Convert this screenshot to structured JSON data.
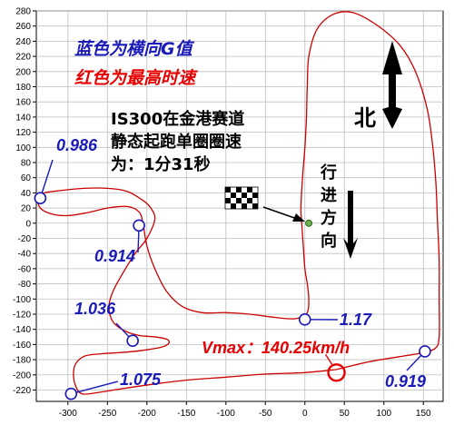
{
  "chart_data": {
    "type": "scatter",
    "xlim": [
      -340,
      175
    ],
    "ylim": [
      -235,
      280
    ],
    "x_ticks": [
      "-300",
      "-250",
      "-200",
      "-150",
      "-100",
      "-50",
      "0",
      "50",
      "100",
      "150"
    ],
    "y_ticks": [
      "280",
      "260",
      "240",
      "220",
      "200",
      "180",
      "160",
      "140",
      "120",
      "100",
      "80",
      "60",
      "40",
      "20",
      "0",
      "-20",
      "-40",
      "-60",
      "-80",
      "-100",
      "-120",
      "-140",
      "-160",
      "-180",
      "-200",
      "-220"
    ],
    "grid": true,
    "track_color": "#cc0000",
    "g_color": "#1a1ab8",
    "vmax_color": "#e60000",
    "track": [
      [
        40,
        -193
      ],
      [
        80,
        -183
      ],
      [
        120,
        -176
      ],
      [
        148,
        -171
      ],
      [
        165,
        -165
      ],
      [
        170,
        -150
      ],
      [
        170,
        -100
      ],
      [
        170,
        -50
      ],
      [
        168,
        0
      ],
      [
        166,
        50
      ],
      [
        162,
        100
      ],
      [
        155,
        150
      ],
      [
        140,
        200
      ],
      [
        120,
        235
      ],
      [
        90,
        262
      ],
      [
        60,
        278
      ],
      [
        35,
        275
      ],
      [
        15,
        255
      ],
      [
        5,
        220
      ],
      [
        3,
        180
      ],
      [
        2,
        140
      ],
      [
        0,
        100
      ],
      [
        -3,
        60
      ],
      [
        -5,
        20
      ],
      [
        -4,
        0
      ],
      [
        -2,
        -30
      ],
      [
        0,
        -60
      ],
      [
        3,
        -80
      ],
      [
        5,
        -100
      ],
      [
        3,
        -118
      ],
      [
        -8,
        -125
      ],
      [
        -20,
        -126
      ],
      [
        -40,
        -124
      ],
      [
        -70,
        -120
      ],
      [
        -100,
        -118
      ],
      [
        -130,
        -118
      ],
      [
        -155,
        -110
      ],
      [
        -175,
        -90
      ],
      [
        -190,
        -60
      ],
      [
        -200,
        -30
      ],
      [
        -205,
        0
      ],
      [
        -210,
        15
      ],
      [
        -225,
        22
      ],
      [
        -250,
        20
      ],
      [
        -275,
        14
      ],
      [
        -300,
        10
      ],
      [
        -320,
        12
      ],
      [
        -335,
        20
      ],
      [
        -338,
        35
      ],
      [
        -330,
        40
      ],
      [
        -310,
        43
      ],
      [
        -280,
        46
      ],
      [
        -250,
        46
      ],
      [
        -225,
        42
      ],
      [
        -205,
        30
      ],
      [
        -195,
        20
      ],
      [
        -190,
        5
      ],
      [
        -200,
        -20
      ],
      [
        -215,
        -40
      ],
      [
        -230,
        -65
      ],
      [
        -243,
        -90
      ],
      [
        -248,
        -110
      ],
      [
        -243,
        -130
      ],
      [
        -228,
        -142
      ],
      [
        -210,
        -148
      ],
      [
        -190,
        -150
      ],
      [
        -175,
        -153
      ],
      [
        -172,
        -158
      ],
      [
        -180,
        -163
      ],
      [
        -200,
        -167
      ],
      [
        -225,
        -170
      ],
      [
        -255,
        -172
      ],
      [
        -278,
        -175
      ],
      [
        -290,
        -185
      ],
      [
        -293,
        -200
      ],
      [
        -290,
        -215
      ],
      [
        -282,
        -225
      ],
      [
        -260,
        -223
      ],
      [
        -230,
        -218
      ],
      [
        -190,
        -212
      ],
      [
        -150,
        -207
      ],
      [
        -100,
        -203
      ],
      [
        -50,
        -199
      ],
      [
        0,
        -197
      ],
      [
        40,
        -193
      ]
    ],
    "g_points": [
      {
        "label": "0.986",
        "x": -335,
        "y": 33
      },
      {
        "label": "0.914",
        "x": -210,
        "y": -3
      },
      {
        "label": "1.036",
        "x": -218,
        "y": -155
      },
      {
        "label": "1.075",
        "x": -296,
        "y": -225
      },
      {
        "label": "1.17",
        "x": 0,
        "y": -127
      },
      {
        "label": "0.919",
        "x": 152,
        "y": -169
      }
    ],
    "vmax_point": {
      "label": "Vmax：140.25km/h",
      "x": 40,
      "y": -197
    },
    "start_point": {
      "x": 5,
      "y": 0
    }
  },
  "legend": {
    "blue_line": "蓝色为横向G值",
    "red_line": "红色为最高时速"
  },
  "info": {
    "line1": "IS300在金港赛道",
    "line2": "静态起跑单圈圈速",
    "line3": "为：1分31秒"
  },
  "direction": {
    "chars": [
      "行",
      "进",
      "方",
      "向"
    ]
  },
  "north": {
    "label": "北"
  }
}
